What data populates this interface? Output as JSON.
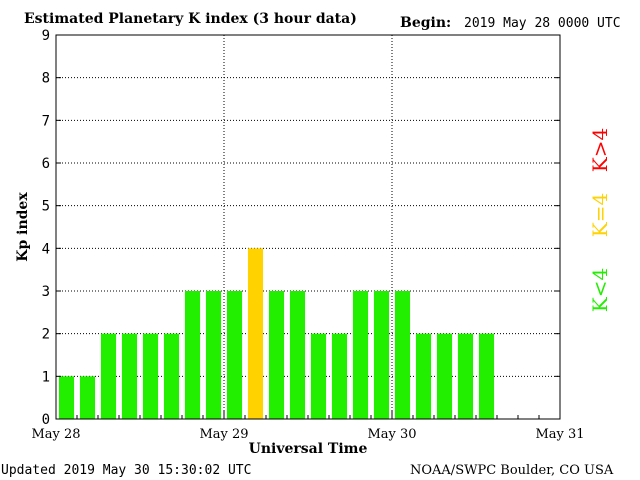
{
  "header": {
    "title": "Estimated Planetary K index (3 hour data)",
    "begin_label": "Begin:",
    "begin_value": "2019 May 28 0000 UTC"
  },
  "footer": {
    "updated": "Updated 2019 May 30 15:30:02 UTC",
    "source": "NOAA/SWPC Boulder, CO USA"
  },
  "legend": {
    "items": [
      {
        "label": "K>4",
        "color": "#ff0000"
      },
      {
        "label": "K=4",
        "color": "#ffd200"
      },
      {
        "label": "K<4",
        "color": "#22ee00"
      }
    ]
  },
  "chart_data": {
    "type": "bar",
    "title": "Estimated Planetary K index (3 hour data)",
    "xlabel": "Universal Time",
    "ylabel": "Kp index",
    "ylim": [
      0,
      9
    ],
    "yticks": [
      0,
      1,
      2,
      3,
      4,
      5,
      6,
      7,
      8,
      9
    ],
    "xtick_labels": [
      "May 28",
      "May 29",
      "May 30",
      "May 31"
    ],
    "slots_per_day": 8,
    "total_slots": 24,
    "grid": true,
    "values": [
      1,
      1,
      2,
      2,
      2,
      2,
      3,
      3,
      3,
      4,
      3,
      3,
      2,
      2,
      3,
      3,
      3,
      2,
      2,
      2,
      2
    ],
    "colors": {
      "below4": "#22ee00",
      "equal4": "#ffd200",
      "above4": "#ff0000"
    }
  }
}
